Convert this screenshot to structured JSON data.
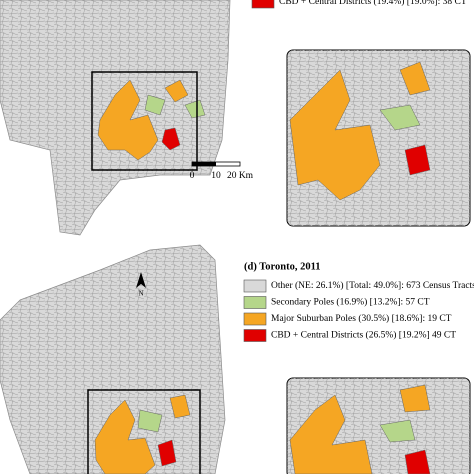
{
  "top_panel": {
    "legend": [
      {
        "label": "CBD + Central Districts (19.4%) [19.0%]: 38 CT",
        "color": "#e00000"
      }
    ],
    "scale_bar": [
      "0",
      "10",
      "20 Km"
    ]
  },
  "bottom_panel": {
    "title": "(d) Toronto, 2011",
    "north": "N",
    "legend": [
      {
        "label": "Other (NE: 26.1%) [Total: 49.0%]: 673 Census Tracts",
        "color": "#d9d9d9"
      },
      {
        "label": "Secondary Poles (16.9%) [13.2%]: 57 CT",
        "color": "#b5d68a"
      },
      {
        "label": "Major Suburban Poles (30.5%) [18.6%]: 19 CT",
        "color": "#f5a623"
      },
      {
        "label": "CBD + Central Districts (26.5%) [19.2%] 49 CT",
        "color": "#e00000"
      }
    ]
  }
}
